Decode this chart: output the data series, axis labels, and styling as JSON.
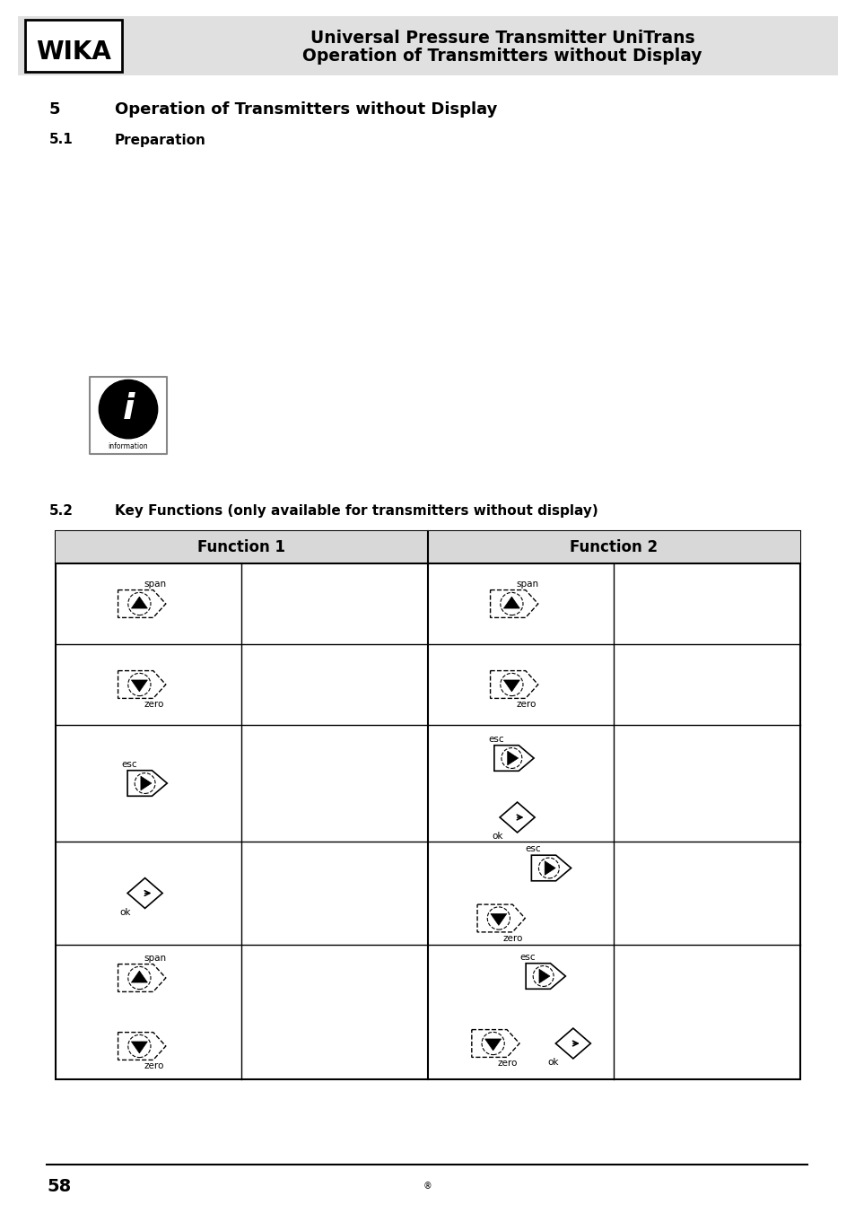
{
  "page_bg": "#ffffff",
  "header_bg": "#e0e0e0",
  "header_line1": "Universal Pressure Transmitter UniTrans",
  "header_line2": "Operation of Transmitters without Display",
  "wika_text": "WIKA",
  "section5_label": "5",
  "section5_title": "Operation of Transmitters without Display",
  "section51_label": "5.1",
  "section51_title": "Preparation",
  "section52_label": "5.2",
  "section52_title": "Key Functions (only available for transmitters without display)",
  "table_header1": "Function 1",
  "table_header2": "Function 2",
  "footer_number": "58"
}
